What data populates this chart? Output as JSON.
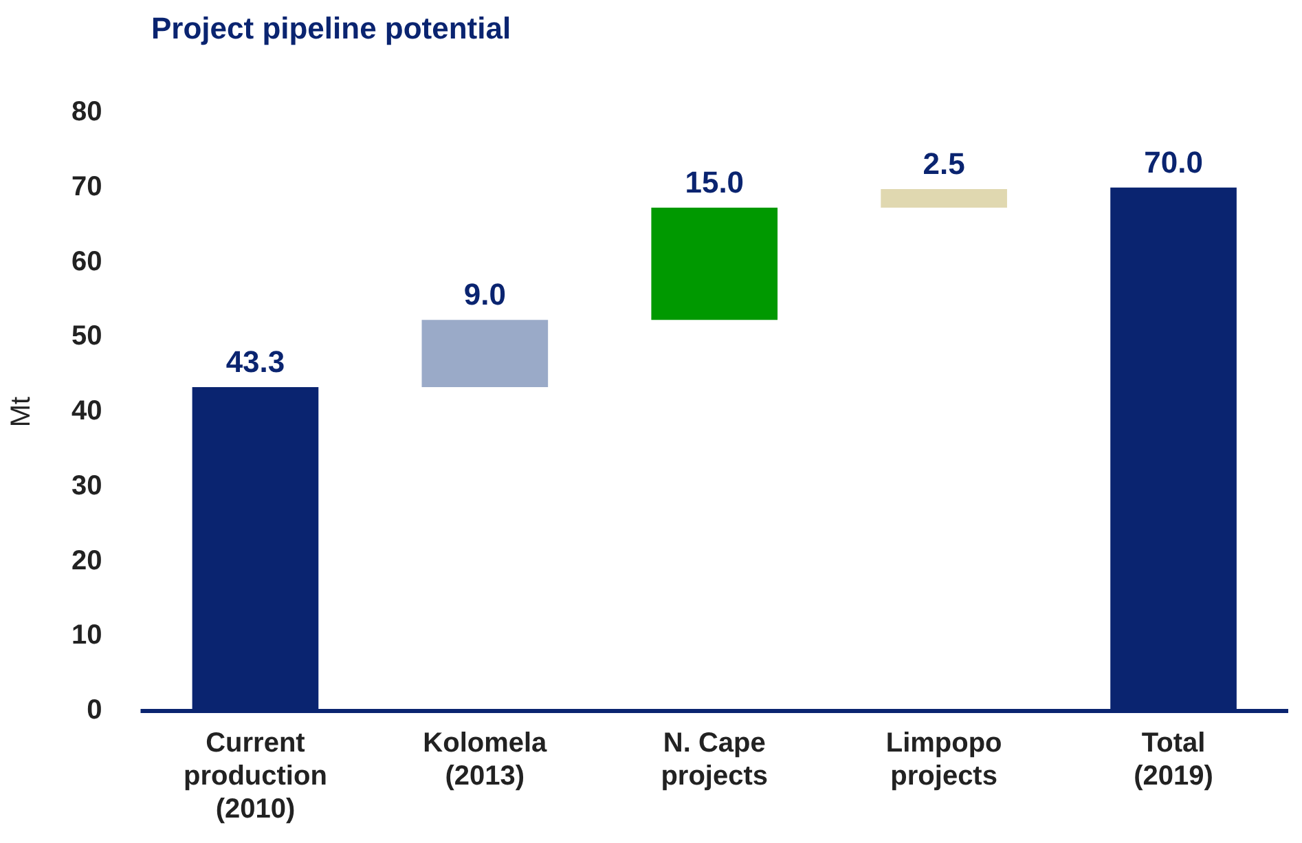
{
  "chart_data": {
    "type": "bar",
    "title": "Project pipeline potential",
    "ylabel": "Mt",
    "categories": [
      "Current production (2010)",
      "Kolomela (2013)",
      "N. Cape projects",
      "Limpopo projects",
      "Total (2019)"
    ],
    "values": [
      43.3,
      9.0,
      15.0,
      2.5,
      70.0
    ],
    "base": [
      0,
      43.3,
      52.3,
      67.3,
      0
    ],
    "colors": [
      "#0a2470",
      "#9aaac8",
      "#009900",
      "#e0d8b0",
      "#0a2470"
    ],
    "value_labels": [
      "43.3",
      "9.0",
      "15.0",
      "2.5",
      "70.0"
    ],
    "ylim": [
      0,
      80
    ],
    "yticks": [
      0,
      10,
      20,
      30,
      40,
      50,
      60,
      70,
      80
    ],
    "grid": false,
    "legend": false
  }
}
